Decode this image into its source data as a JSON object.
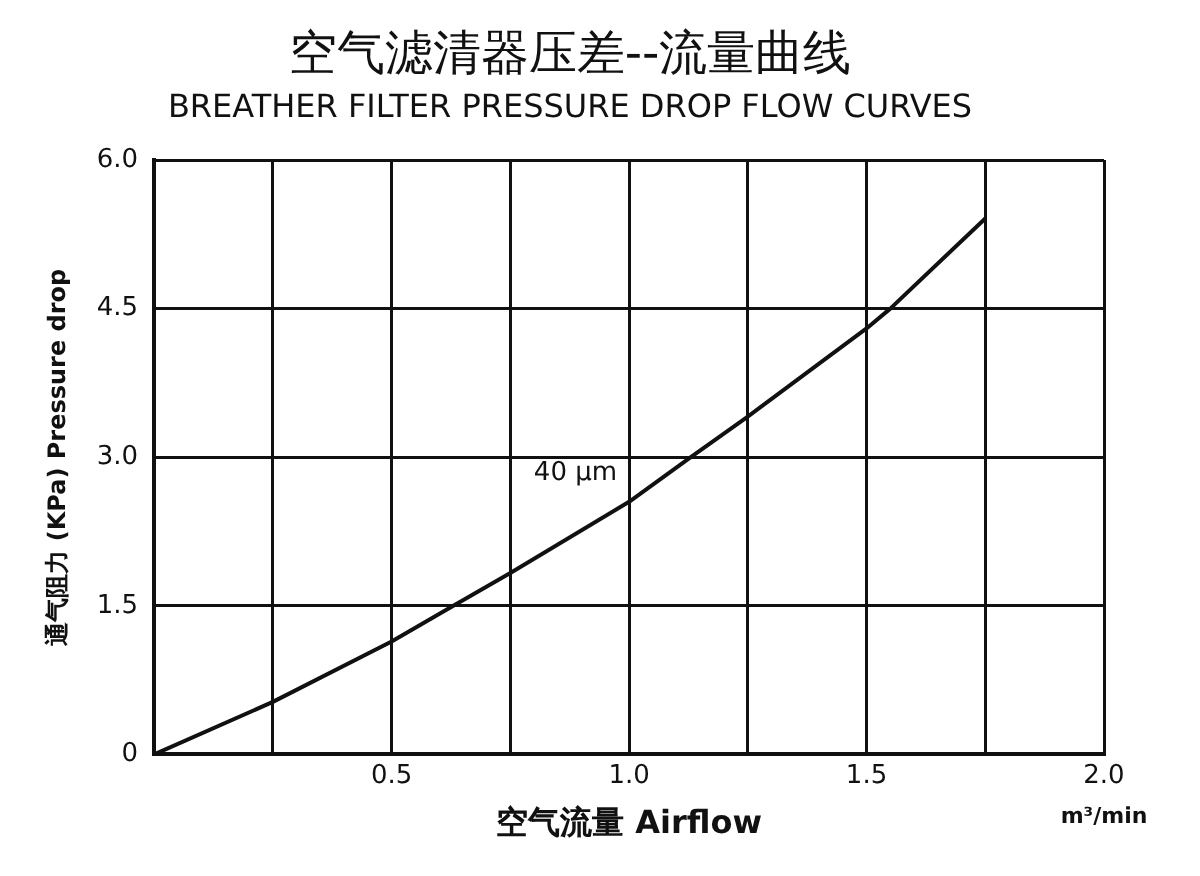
{
  "chart_data": {
    "type": "line",
    "title": "空气滤清器压差--流量曲线",
    "subtitle": "BREATHER FILTER PRESSURE DROP FLOW CURVES",
    "xlabel": "空气流量 Airflow",
    "ylabel": "通气阻力 (KPa) Pressure drop",
    "annotations": [
      "m³/min"
    ],
    "x": [
      0,
      0.25,
      0.5,
      0.63,
      0.75,
      1.0,
      1.13,
      1.25,
      1.5,
      1.55,
      1.75
    ],
    "series": [
      {
        "name": "40 μm",
        "color": "#111111",
        "values": [
          0,
          0.53,
          1.14,
          1.5,
          1.83,
          2.55,
          3.0,
          3.41,
          4.3,
          4.5,
          5.41
        ]
      }
    ],
    "xlim": [
      0,
      2
    ],
    "xticks": [
      {
        "value": 0,
        "label": null
      },
      {
        "value": 0.25,
        "label": null
      },
      0.5,
      {
        "value": 0.75,
        "label": null
      },
      {
        "value": 1,
        "label": "1.0"
      },
      {
        "value": 1.25,
        "label": null
      },
      1.5,
      {
        "value": 1.75,
        "label": null
      },
      {
        "value": 2,
        "label": "2.0"
      }
    ],
    "ylim": [
      0,
      6
    ],
    "yticks": [
      0,
      1.5,
      {
        "value": 3,
        "label": "3.0"
      },
      4.5,
      {
        "value": 6,
        "label": "6.0"
      }
    ],
    "grid": true,
    "legend": false,
    "marker": "none",
    "line_style": "solid"
  }
}
